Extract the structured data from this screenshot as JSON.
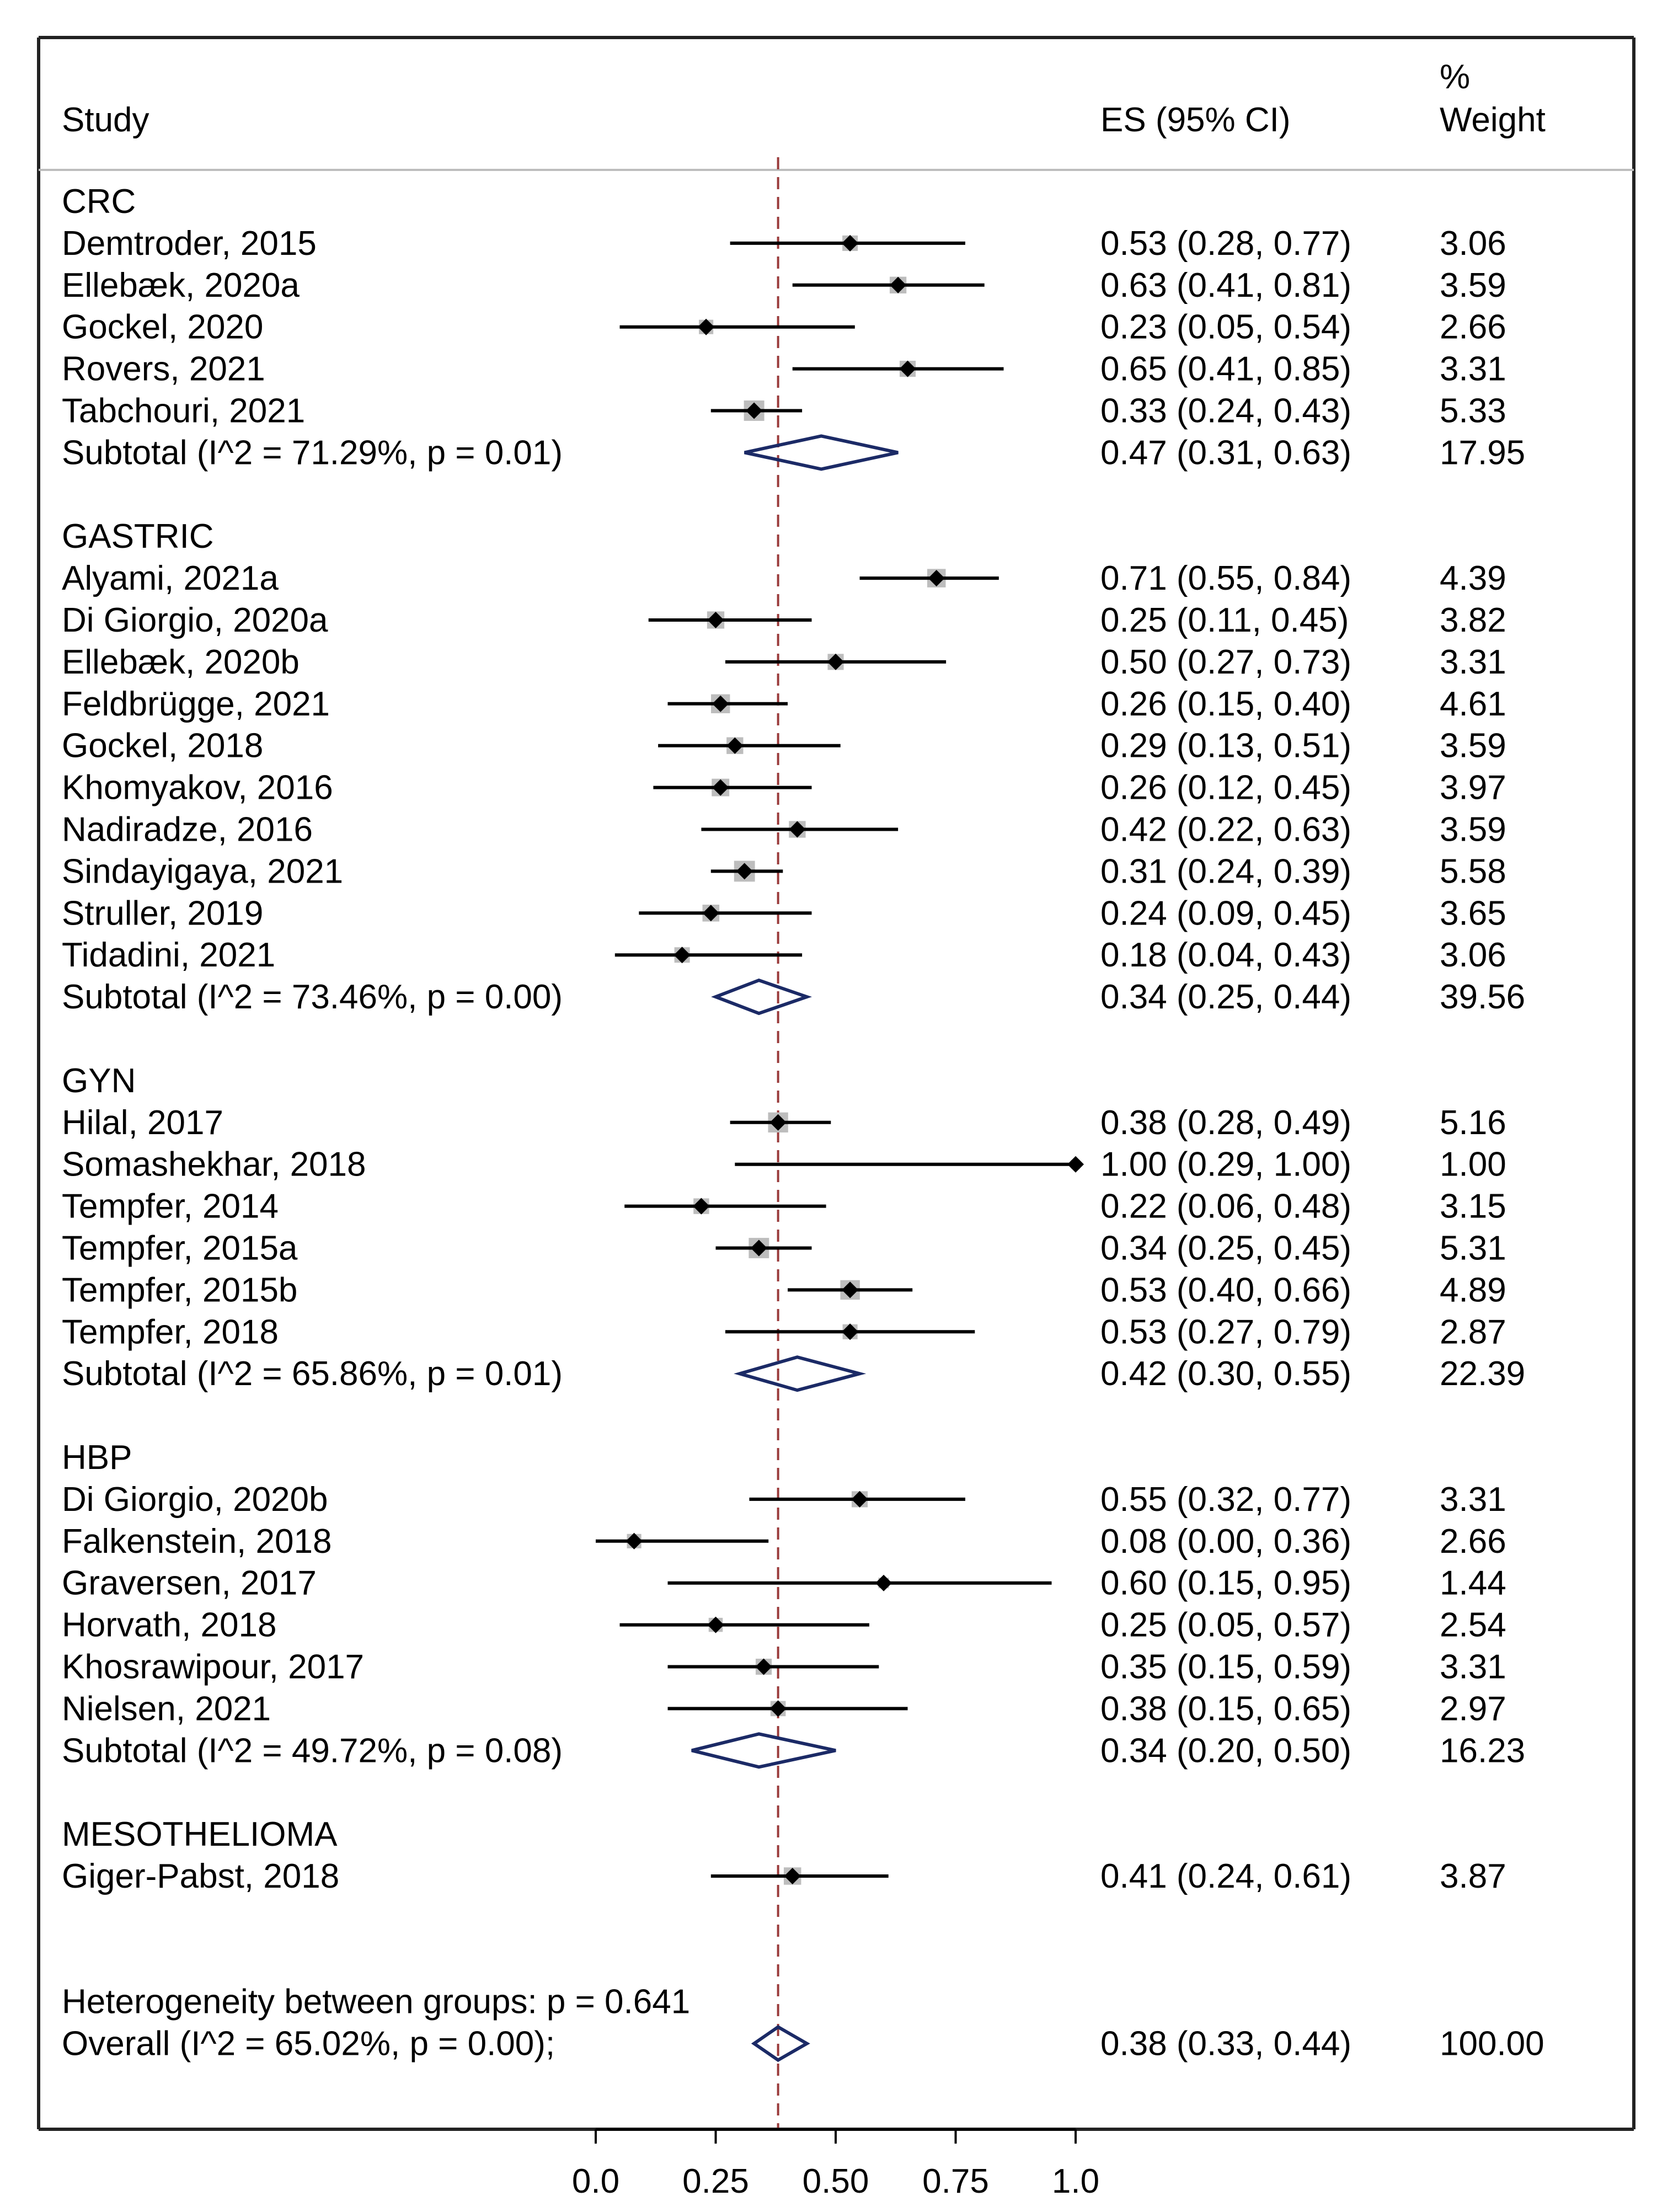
{
  "chart_data": {
    "type": "forest",
    "headers": {
      "study": "Study",
      "es": "ES (95% CI)",
      "weight_line1": "%",
      "weight_line2": "Weight"
    },
    "reference_line": 0.38,
    "xlim": [
      0,
      1
    ],
    "x_ticks": [
      {
        "value": 0.0,
        "label": "0.0"
      },
      {
        "value": 0.25,
        "label": "0.25"
      },
      {
        "value": 0.5,
        "label": "0.50"
      },
      {
        "value": 0.75,
        "label": "0.75"
      },
      {
        "value": 1.0,
        "label": "1.0"
      }
    ],
    "rows": [
      {
        "kind": "group",
        "label": "CRC"
      },
      {
        "kind": "study",
        "label": "Demtroder, 2015",
        "es": 0.53,
        "lo": 0.28,
        "hi": 0.77,
        "weight": 3.06,
        "ci_text": "0.53 (0.28, 0.77)",
        "w_text": "3.06"
      },
      {
        "kind": "study",
        "label": "Ellebæk, 2020a",
        "es": 0.63,
        "lo": 0.41,
        "hi": 0.81,
        "weight": 3.59,
        "ci_text": "0.63 (0.41, 0.81)",
        "w_text": "3.59"
      },
      {
        "kind": "study",
        "label": "Gockel, 2020",
        "es": 0.23,
        "lo": 0.05,
        "hi": 0.54,
        "weight": 2.66,
        "ci_text": "0.23 (0.05, 0.54)",
        "w_text": "2.66"
      },
      {
        "kind": "study",
        "label": "Rovers, 2021",
        "es": 0.65,
        "lo": 0.41,
        "hi": 0.85,
        "weight": 3.31,
        "ci_text": "0.65 (0.41, 0.85)",
        "w_text": "3.31"
      },
      {
        "kind": "study",
        "label": "Tabchouri, 2021",
        "es": 0.33,
        "lo": 0.24,
        "hi": 0.43,
        "weight": 5.33,
        "ci_text": "0.33 (0.24, 0.43)",
        "w_text": "5.33"
      },
      {
        "kind": "subtotal",
        "label": "Subtotal  (I^2 = 71.29%, p = 0.01)",
        "es": 0.47,
        "lo": 0.31,
        "hi": 0.63,
        "weight": 17.95,
        "ci_text": "0.47 (0.31, 0.63)",
        "w_text": "17.95"
      },
      {
        "kind": "spacer"
      },
      {
        "kind": "group",
        "label": "GASTRIC"
      },
      {
        "kind": "study",
        "label": "Alyami, 2021a",
        "es": 0.71,
        "lo": 0.55,
        "hi": 0.84,
        "weight": 4.39,
        "ci_text": "0.71 (0.55, 0.84)",
        "w_text": "4.39"
      },
      {
        "kind": "study",
        "label": "Di Giorgio, 2020a",
        "es": 0.25,
        "lo": 0.11,
        "hi": 0.45,
        "weight": 3.82,
        "ci_text": "0.25 (0.11, 0.45)",
        "w_text": "3.82"
      },
      {
        "kind": "study",
        "label": "Ellebæk, 2020b",
        "es": 0.5,
        "lo": 0.27,
        "hi": 0.73,
        "weight": 3.31,
        "ci_text": "0.50 (0.27, 0.73)",
        "w_text": "3.31"
      },
      {
        "kind": "study",
        "label": "Feldbrügge, 2021",
        "es": 0.26,
        "lo": 0.15,
        "hi": 0.4,
        "weight": 4.61,
        "ci_text": "0.26 (0.15, 0.40)",
        "w_text": "4.61"
      },
      {
        "kind": "study",
        "label": "Gockel, 2018",
        "es": 0.29,
        "lo": 0.13,
        "hi": 0.51,
        "weight": 3.59,
        "ci_text": "0.29 (0.13, 0.51)",
        "w_text": "3.59"
      },
      {
        "kind": "study",
        "label": "Khomyakov, 2016",
        "es": 0.26,
        "lo": 0.12,
        "hi": 0.45,
        "weight": 3.97,
        "ci_text": "0.26 (0.12, 0.45)",
        "w_text": "3.97"
      },
      {
        "kind": "study",
        "label": "Nadiradze, 2016",
        "es": 0.42,
        "lo": 0.22,
        "hi": 0.63,
        "weight": 3.59,
        "ci_text": "0.42 (0.22, 0.63)",
        "w_text": "3.59"
      },
      {
        "kind": "study",
        "label": "Sindayigaya, 2021",
        "es": 0.31,
        "lo": 0.24,
        "hi": 0.39,
        "weight": 5.58,
        "ci_text": "0.31 (0.24, 0.39)",
        "w_text": "5.58"
      },
      {
        "kind": "study",
        "label": "Struller, 2019",
        "es": 0.24,
        "lo": 0.09,
        "hi": 0.45,
        "weight": 3.65,
        "ci_text": "0.24 (0.09, 0.45)",
        "w_text": "3.65"
      },
      {
        "kind": "study",
        "label": "Tidadini, 2021",
        "es": 0.18,
        "lo": 0.04,
        "hi": 0.43,
        "weight": 3.06,
        "ci_text": "0.18 (0.04, 0.43)",
        "w_text": "3.06"
      },
      {
        "kind": "subtotal",
        "label": "Subtotal  (I^2 = 73.46%, p = 0.00)",
        "es": 0.34,
        "lo": 0.25,
        "hi": 0.44,
        "weight": 39.56,
        "ci_text": "0.34 (0.25, 0.44)",
        "w_text": "39.56"
      },
      {
        "kind": "spacer"
      },
      {
        "kind": "group",
        "label": "GYN"
      },
      {
        "kind": "study",
        "label": "Hilal, 2017",
        "es": 0.38,
        "lo": 0.28,
        "hi": 0.49,
        "weight": 5.16,
        "ci_text": "0.38 (0.28, 0.49)",
        "w_text": "5.16"
      },
      {
        "kind": "study",
        "label": "Somashekhar, 2018",
        "es": 1.0,
        "lo": 0.29,
        "hi": 1.0,
        "weight": 1.0,
        "ci_text": "1.00 (0.29, 1.00)",
        "w_text": "1.00"
      },
      {
        "kind": "study",
        "label": "Tempfer, 2014",
        "es": 0.22,
        "lo": 0.06,
        "hi": 0.48,
        "weight": 3.15,
        "ci_text": "0.22 (0.06, 0.48)",
        "w_text": "3.15"
      },
      {
        "kind": "study",
        "label": "Tempfer, 2015a",
        "es": 0.34,
        "lo": 0.25,
        "hi": 0.45,
        "weight": 5.31,
        "ci_text": "0.34 (0.25, 0.45)",
        "w_text": "5.31"
      },
      {
        "kind": "study",
        "label": "Tempfer, 2015b",
        "es": 0.53,
        "lo": 0.4,
        "hi": 0.66,
        "weight": 4.89,
        "ci_text": "0.53 (0.40, 0.66)",
        "w_text": "4.89"
      },
      {
        "kind": "study",
        "label": "Tempfer, 2018",
        "es": 0.53,
        "lo": 0.27,
        "hi": 0.79,
        "weight": 2.87,
        "ci_text": "0.53 (0.27, 0.79)",
        "w_text": "2.87"
      },
      {
        "kind": "subtotal",
        "label": "Subtotal  (I^2 = 65.86%, p = 0.01)",
        "es": 0.42,
        "lo": 0.3,
        "hi": 0.55,
        "weight": 22.39,
        "ci_text": "0.42 (0.30, 0.55)",
        "w_text": "22.39"
      },
      {
        "kind": "spacer"
      },
      {
        "kind": "group",
        "label": "HBP"
      },
      {
        "kind": "study",
        "label": "Di Giorgio, 2020b",
        "es": 0.55,
        "lo": 0.32,
        "hi": 0.77,
        "weight": 3.31,
        "ci_text": "0.55 (0.32, 0.77)",
        "w_text": "3.31"
      },
      {
        "kind": "study",
        "label": "Falkenstein, 2018",
        "es": 0.08,
        "lo": 0.0,
        "hi": 0.36,
        "weight": 2.66,
        "ci_text": "0.08 (0.00, 0.36)",
        "w_text": "2.66"
      },
      {
        "kind": "study",
        "label": "Graversen, 2017",
        "es": 0.6,
        "lo": 0.15,
        "hi": 0.95,
        "weight": 1.44,
        "ci_text": "0.60 (0.15, 0.95)",
        "w_text": "1.44"
      },
      {
        "kind": "study",
        "label": "Horvath, 2018",
        "es": 0.25,
        "lo": 0.05,
        "hi": 0.57,
        "weight": 2.54,
        "ci_text": "0.25 (0.05, 0.57)",
        "w_text": "2.54"
      },
      {
        "kind": "study",
        "label": "Khosrawipour, 2017",
        "es": 0.35,
        "lo": 0.15,
        "hi": 0.59,
        "weight": 3.31,
        "ci_text": "0.35 (0.15, 0.59)",
        "w_text": "3.31"
      },
      {
        "kind": "study",
        "label": "Nielsen, 2021",
        "es": 0.38,
        "lo": 0.15,
        "hi": 0.65,
        "weight": 2.97,
        "ci_text": "0.38 (0.15, 0.65)",
        "w_text": "2.97"
      },
      {
        "kind": "subtotal",
        "label": "Subtotal  (I^2 = 49.72%, p = 0.08)",
        "es": 0.34,
        "lo": 0.2,
        "hi": 0.5,
        "weight": 16.23,
        "ci_text": "0.34 (0.20, 0.50)",
        "w_text": "16.23"
      },
      {
        "kind": "spacer"
      },
      {
        "kind": "group",
        "label": "MESOTHELIOMA"
      },
      {
        "kind": "study",
        "label": "Giger-Pabst, 2018",
        "es": 0.41,
        "lo": 0.24,
        "hi": 0.61,
        "weight": 3.87,
        "ci_text": "0.41 (0.24, 0.61)",
        "w_text": "3.87"
      },
      {
        "kind": "spacer"
      },
      {
        "kind": "spacer"
      },
      {
        "kind": "text",
        "label": "Heterogeneity between groups: p = 0.641"
      },
      {
        "kind": "overall",
        "label": "Overall  (I^2 = 65.02%, p = 0.00);",
        "es": 0.38,
        "lo": 0.33,
        "hi": 0.44,
        "weight": 100.0,
        "ci_text": "0.38 (0.33, 0.44)",
        "w_text": "100.00"
      }
    ]
  }
}
